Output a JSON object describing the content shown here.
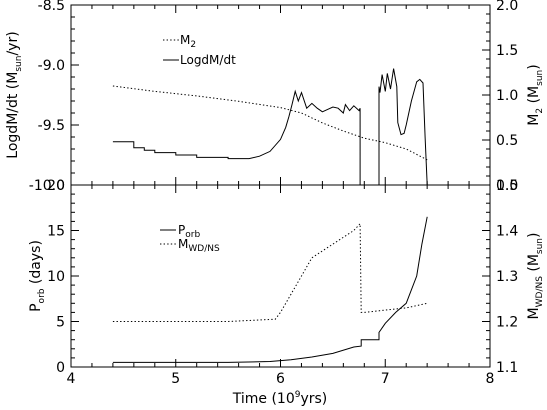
{
  "chart_data": [
    {
      "type": "line",
      "xlim": [
        4,
        8
      ],
      "ylim": [
        -10.0,
        -8.5
      ],
      "y2lim": [
        0.0,
        2.0
      ],
      "x_ticks": [],
      "y_ticks": [
        "-10.0",
        "-9.5",
        "-9.0",
        "-8.5"
      ],
      "y2_ticks": [
        "0.0",
        "0.5",
        "1.0",
        "1.5",
        "2.0"
      ],
      "y_ticks_values": [
        -10.0,
        -9.5,
        -9.0,
        -8.5
      ],
      "y2_ticks_values": [
        0.0,
        0.5,
        1.0,
        1.5,
        2.0
      ],
      "ylabel": {
        "pre": "LogdM/dt (M",
        "sub": "sun",
        "post": "/yr)"
      },
      "y2label": {
        "pre": "M",
        "sub": "2",
        "post": " (M",
        "sub2": "sun",
        "post2": ")"
      },
      "legend_position": "top-left",
      "series": [
        {
          "name": "M",
          "name_sub": "2",
          "style": "dotted",
          "axis": "right",
          "x": [
            4.4,
            4.8,
            5.2,
            5.6,
            6.0,
            6.2,
            6.4,
            6.6,
            6.75,
            6.8,
            7.0,
            7.2,
            7.4
          ],
          "y": [
            1.1,
            1.04,
            0.99,
            0.93,
            0.86,
            0.8,
            0.69,
            0.6,
            0.54,
            0.52,
            0.47,
            0.4,
            0.28
          ]
        },
        {
          "name": "LogdM/dt",
          "style": "solid",
          "axis": "left",
          "x": [
            4.4,
            4.6,
            4.6,
            4.7,
            4.7,
            4.8,
            4.8,
            5.0,
            5.0,
            5.2,
            5.2,
            5.5,
            5.5,
            5.7,
            5.8,
            5.9,
            6.0,
            6.05,
            6.08,
            6.11,
            6.14,
            6.17,
            6.2,
            6.25,
            6.3,
            6.35,
            6.4,
            6.45,
            6.5,
            6.55,
            6.6,
            6.62,
            6.66,
            6.7,
            6.75,
            6.76,
            6.76,
            6.77,
            6.9,
            6.94,
            6.94,
            6.95,
            6.97,
            7.0,
            7.02,
            7.05,
            7.08,
            7.11,
            7.12,
            7.15,
            7.18,
            7.2,
            7.25,
            7.3,
            7.33,
            7.36,
            7.38,
            7.4,
            7.4
          ],
          "y": [
            -9.64,
            -9.64,
            -9.69,
            -9.69,
            -9.71,
            -9.71,
            -9.73,
            -9.73,
            -9.75,
            -9.75,
            -9.77,
            -9.77,
            -9.78,
            -9.78,
            -9.76,
            -9.72,
            -9.62,
            -9.52,
            -9.43,
            -9.33,
            -9.22,
            -9.3,
            -9.23,
            -9.36,
            -9.32,
            -9.36,
            -9.39,
            -9.37,
            -9.35,
            -9.36,
            -9.4,
            -9.33,
            -9.38,
            -9.34,
            -9.38,
            -9.36,
            -10.0,
            -10.0,
            -10.0,
            -10.0,
            -9.18,
            -9.23,
            -9.08,
            -9.22,
            -9.07,
            -9.2,
            -9.03,
            -9.18,
            -9.48,
            -9.58,
            -9.57,
            -9.5,
            -9.3,
            -9.14,
            -9.12,
            -9.15,
            -9.6,
            -10.0,
            -10.0
          ]
        }
      ]
    },
    {
      "type": "line",
      "xlim": [
        4,
        8
      ],
      "ylim": [
        0,
        20
      ],
      "y2lim": [
        1.1,
        1.5
      ],
      "x_ticks": [
        "4",
        "5",
        "6",
        "7",
        "8"
      ],
      "x_ticks_values": [
        4,
        5,
        6,
        7,
        8
      ],
      "y_ticks": [
        "0",
        "5",
        "10",
        "15",
        "20"
      ],
      "y_ticks_values": [
        0,
        5,
        10,
        15,
        20
      ],
      "y2_ticks": [
        "1.1",
        "1.2",
        "1.3",
        "1.4",
        "1.5"
      ],
      "y2_ticks_values": [
        1.1,
        1.2,
        1.3,
        1.4,
        1.5
      ],
      "xlabel": {
        "pre": "Time (10",
        "sup": "9",
        "post": "yrs)"
      },
      "ylabel": {
        "pre": "P",
        "sub": "orb",
        "post": " (days)"
      },
      "y2label": {
        "pre": "M",
        "sub": "WD/NS",
        "post": " (M",
        "sub2": "sun",
        "post2": ")"
      },
      "legend_position": "top-left",
      "series": [
        {
          "name": "P",
          "name_sub": "orb",
          "style": "solid",
          "axis": "left",
          "x": [
            4.4,
            5.0,
            5.5,
            5.9,
            6.1,
            6.3,
            6.5,
            6.7,
            6.77,
            6.77,
            6.94,
            6.94,
            7.0,
            7.1,
            7.2,
            7.3,
            7.35,
            7.4
          ],
          "y": [
            0.5,
            0.5,
            0.5,
            0.6,
            0.8,
            1.1,
            1.5,
            2.2,
            2.3,
            3.0,
            3.0,
            3.8,
            4.8,
            6.0,
            7.0,
            10.0,
            13.5,
            16.5
          ]
        },
        {
          "name": "M",
          "name_sub": "WD/NS",
          "style": "dotted",
          "axis": "right",
          "x": [
            4.4,
            5.5,
            5.95,
            6.0,
            6.1,
            6.2,
            6.3,
            6.5,
            6.7,
            6.76,
            6.77,
            6.8,
            7.0,
            7.2,
            7.4
          ],
          "y": [
            1.2,
            1.2,
            1.205,
            1.22,
            1.26,
            1.3,
            1.34,
            1.37,
            1.4,
            1.415,
            1.22,
            1.22,
            1.225,
            1.23,
            1.24
          ]
        }
      ]
    }
  ]
}
